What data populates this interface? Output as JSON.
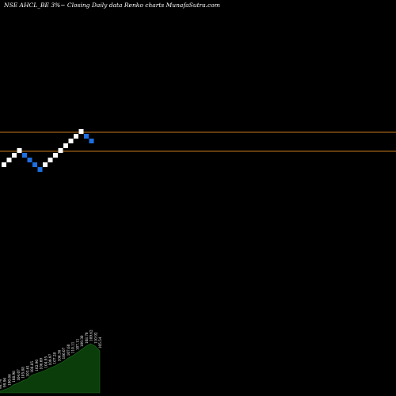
{
  "header": {
    "title": "NSE AHCL_BE 3%~  Closing Daily data  Renko  charts MunafaSutra.com"
  },
  "colors": {
    "background": "#000000",
    "up_brick": "#ffffff",
    "down_brick": "#1e6fe0",
    "reference_line": "#c8781e",
    "volume_fill": "#0b3d0b",
    "volume_label": "#ffffff"
  },
  "chart_data": [
    {
      "type": "renko",
      "bricks": [
        {
          "dir": "up"
        },
        {
          "dir": "up"
        },
        {
          "dir": "up"
        },
        {
          "dir": "up"
        },
        {
          "dir": "down"
        },
        {
          "dir": "down"
        },
        {
          "dir": "down"
        },
        {
          "dir": "down"
        },
        {
          "dir": "up"
        },
        {
          "dir": "up"
        },
        {
          "dir": "up"
        },
        {
          "dir": "up"
        },
        {
          "dir": "up"
        },
        {
          "dir": "up"
        },
        {
          "dir": "up"
        },
        {
          "dir": "up"
        },
        {
          "dir": "down"
        },
        {
          "dir": "down"
        }
      ],
      "reference_lines": 2
    },
    {
      "type": "area",
      "labels": [
        "98.74",
        "99.96",
        "100.66",
        "108.98",
        "104.07",
        "105.88",
        "103.61",
        "108.85",
        "102.90",
        "106.69",
        "104.95",
        "109.97",
        "107.28",
        "106.36",
        "106.07",
        "107.60",
        "110.11",
        "107.11",
        "109.30",
        "108.70",
        "109.62",
        "110.92",
        "105.54"
      ],
      "values": [
        2,
        4,
        6,
        10,
        12,
        15,
        17,
        22,
        24,
        26,
        28,
        31,
        33,
        36,
        39,
        43,
        46,
        50,
        54,
        58,
        61,
        58,
        52
      ]
    }
  ]
}
